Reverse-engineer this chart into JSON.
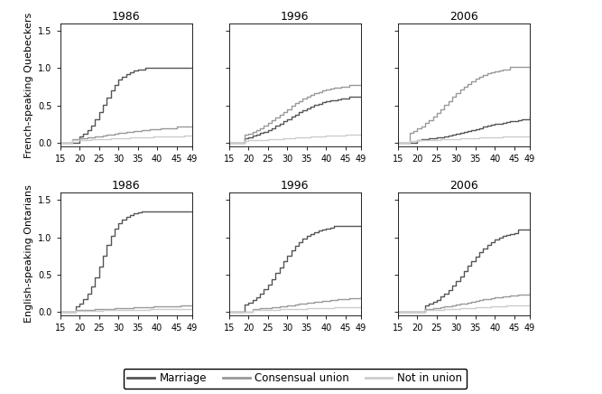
{
  "years": [
    "1986",
    "1996",
    "2006"
  ],
  "row_labels": [
    "French-speaking Quebeckers",
    "English-speaking Ontarians"
  ],
  "x_min": 15,
  "x_max": 49,
  "y_min": -0.05,
  "y_max": 1.6,
  "y_ticks": [
    0.0,
    0.5,
    1.0,
    1.5
  ],
  "x_ticks": [
    15,
    20,
    25,
    30,
    35,
    40,
    45,
    49
  ],
  "colors": {
    "marriage": "#555555",
    "consensual": "#999999",
    "not_in_union": "#cccccc"
  },
  "legend": {
    "marriage": "Marriage",
    "consensual": "Consensual union",
    "not_in_union": "Not in union"
  },
  "panels": {
    "QC_1986": {
      "marriage": {
        "final": 1.0,
        "start": 20,
        "end": 37,
        "slope": 7.0,
        "mid_t": 0.35
      },
      "consensual": {
        "final": 0.21,
        "start": 18,
        "end": 45,
        "slope": 4.0,
        "mid_t": 0.35
      },
      "not_in_union": {
        "final": 0.1,
        "start": 18,
        "end": 49,
        "slope": 3.0,
        "mid_t": 0.3
      }
    },
    "QC_1996": {
      "marriage": {
        "final": 0.62,
        "start": 19,
        "end": 46,
        "slope": 5.5,
        "mid_t": 0.4
      },
      "consensual": {
        "final": 0.78,
        "start": 19,
        "end": 46,
        "slope": 5.5,
        "mid_t": 0.35
      },
      "not_in_union": {
        "final": 0.12,
        "start": 19,
        "end": 49,
        "slope": 3.5,
        "mid_t": 0.4
      }
    },
    "QC_2006": {
      "marriage": {
        "final": 0.35,
        "start": 20,
        "end": 49,
        "slope": 4.5,
        "mid_t": 0.5
      },
      "consensual": {
        "final": 1.02,
        "start": 18,
        "end": 44,
        "slope": 5.5,
        "mid_t": 0.35
      },
      "not_in_union": {
        "final": 0.1,
        "start": 18,
        "end": 49,
        "slope": 3.0,
        "mid_t": 0.4
      }
    },
    "ON_1986": {
      "marriage": {
        "final": 1.35,
        "start": 19,
        "end": 36,
        "slope": 7.5,
        "mid_t": 0.38
      },
      "consensual": {
        "final": 0.09,
        "start": 19,
        "end": 49,
        "slope": 3.5,
        "mid_t": 0.4
      },
      "not_in_union": {
        "final": 0.04,
        "start": 19,
        "end": 49,
        "slope": 3.0,
        "mid_t": 0.4
      }
    },
    "ON_1996": {
      "marriage": {
        "final": 1.15,
        "start": 19,
        "end": 42,
        "slope": 6.5,
        "mid_t": 0.38
      },
      "consensual": {
        "final": 0.2,
        "start": 21,
        "end": 49,
        "slope": 4.0,
        "mid_t": 0.42
      },
      "not_in_union": {
        "final": 0.07,
        "start": 21,
        "end": 49,
        "slope": 3.0,
        "mid_t": 0.4
      }
    },
    "ON_2006": {
      "marriage": {
        "final": 1.1,
        "start": 22,
        "end": 46,
        "slope": 6.0,
        "mid_t": 0.42
      },
      "consensual": {
        "final": 0.25,
        "start": 22,
        "end": 49,
        "slope": 4.5,
        "mid_t": 0.42
      },
      "not_in_union": {
        "final": 0.1,
        "start": 22,
        "end": 49,
        "slope": 3.5,
        "mid_t": 0.45
      }
    }
  }
}
